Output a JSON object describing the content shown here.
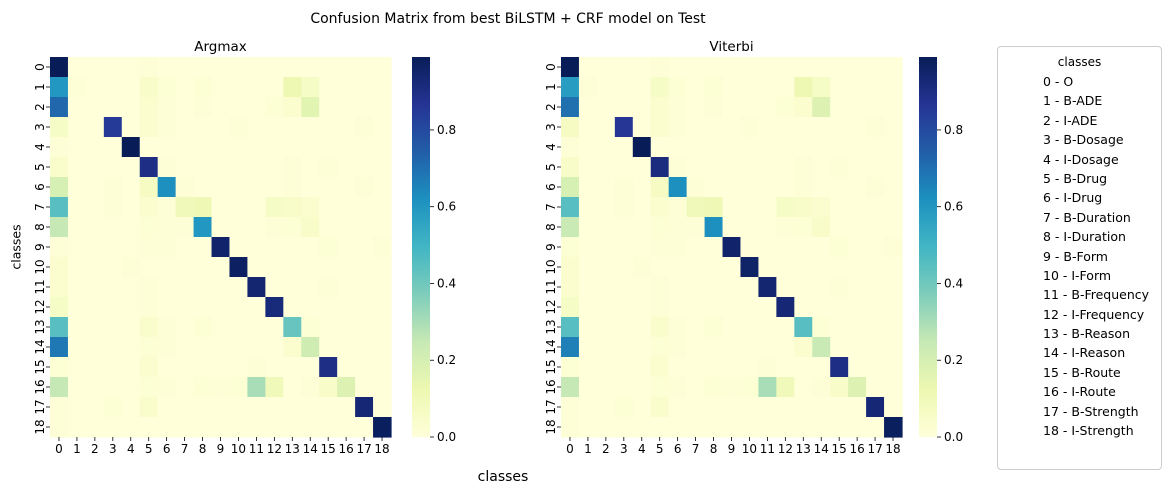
{
  "suptitle": "Confusion Matrix from best BiLSTM + CRF model on Test",
  "xlabel_shared": "classes",
  "legend": {
    "title": "classes",
    "items": [
      "0 - O",
      "1 - B-ADE",
      "2 - I-ADE",
      "3 - B-Dosage",
      "4 - I-Dosage",
      "5 - B-Drug",
      "6 - I-Drug",
      "7 - B-Duration",
      "8 - I-Duration",
      "9 - B-Form",
      "10 - I-Form",
      "11 - B-Frequency",
      "12 - I-Frequency",
      "13 - B-Reason",
      "14 - I-Reason",
      "15 - B-Route",
      "16 - I-Route",
      "17 - B-Strength",
      "18 - I-Strength"
    ]
  },
  "colors": {
    "colormap": "YlGnBu",
    "stops": [
      "#ffffd9",
      "#edf8b1",
      "#c7e9b4",
      "#7fcdbb",
      "#41b6c4",
      "#1d91c0",
      "#225ea8",
      "#253494",
      "#081d58"
    ],
    "vmin": 0,
    "vmax": 1
  },
  "chart_data": [
    {
      "type": "heatmap",
      "title": "Argmax",
      "ylabel": "classes",
      "xticks": [
        "0",
        "1",
        "2",
        "3",
        "4",
        "5",
        "6",
        "7",
        "8",
        "9",
        "10",
        "11",
        "12",
        "13",
        "14",
        "15",
        "16",
        "17",
        "18"
      ],
      "yticks": [
        "0",
        "1",
        "2",
        "3",
        "4",
        "5",
        "6",
        "7",
        "8",
        "9",
        "10",
        "11",
        "12",
        "13",
        "14",
        "15",
        "16",
        "17",
        "18"
      ],
      "colorbar_ticks": [
        "0.0",
        "0.2",
        "0.4",
        "0.6",
        "0.8"
      ],
      "colorbar_range": [
        0,
        0.99
      ],
      "matrix": [
        [
          0.99,
          0,
          0,
          0,
          0,
          0.01,
          0,
          0,
          0,
          0,
          0,
          0,
          0,
          0,
          0,
          0,
          0,
          0,
          0
        ],
        [
          0.6,
          0.01,
          0,
          0,
          0,
          0.05,
          0.02,
          0,
          0.02,
          0,
          0,
          0,
          0,
          0.12,
          0.06,
          0,
          0,
          0,
          0
        ],
        [
          0.72,
          0,
          0,
          0,
          0,
          0.03,
          0.01,
          0,
          0.01,
          0,
          0,
          0,
          0.02,
          0.03,
          0.16,
          0,
          0,
          0,
          0
        ],
        [
          0.06,
          0,
          0,
          0.85,
          0,
          0.03,
          0.01,
          0,
          0,
          0,
          0.01,
          0,
          0,
          0,
          0,
          0,
          0,
          0.01,
          0
        ],
        [
          0.01,
          0,
          0,
          0,
          0.99,
          0,
          0,
          0,
          0,
          0,
          0,
          0,
          0,
          0,
          0,
          0,
          0,
          0,
          0
        ],
        [
          0.04,
          0,
          0,
          0,
          0,
          0.9,
          0.01,
          0,
          0,
          0,
          0,
          0,
          0,
          0.01,
          0,
          0.01,
          0,
          0,
          0
        ],
        [
          0.2,
          0,
          0,
          0.01,
          0,
          0.07,
          0.62,
          0.01,
          0,
          0,
          0,
          0,
          0,
          0.01,
          0,
          0,
          0,
          0.01,
          0
        ],
        [
          0.45,
          0,
          0,
          0.01,
          0,
          0.03,
          0.01,
          0.1,
          0.11,
          0,
          0,
          0,
          0.06,
          0.05,
          0.03,
          0,
          0,
          0,
          0
        ],
        [
          0.25,
          0,
          0,
          0,
          0,
          0.02,
          0.01,
          0.01,
          0.6,
          0,
          0,
          0,
          0.01,
          0.02,
          0.05,
          0,
          0,
          0,
          0
        ],
        [
          0.01,
          0,
          0,
          0,
          0,
          0.01,
          0.01,
          0,
          0,
          0.95,
          0,
          0,
          0,
          0,
          0,
          0.02,
          0,
          0,
          0.01
        ],
        [
          0.03,
          0,
          0,
          0,
          0.01,
          0,
          0,
          0,
          0,
          0,
          0.97,
          0,
          0,
          0,
          0,
          0,
          0,
          0,
          0
        ],
        [
          0.03,
          0,
          0,
          0,
          0,
          0.01,
          0,
          0,
          0,
          0,
          0,
          0.94,
          0,
          0,
          0,
          0.01,
          0,
          0,
          0
        ],
        [
          0.06,
          0,
          0,
          0,
          0,
          0.01,
          0,
          0,
          0,
          0,
          0,
          0,
          0.92,
          0,
          0,
          0,
          0,
          0,
          0
        ],
        [
          0.45,
          0,
          0,
          0,
          0,
          0.04,
          0.01,
          0,
          0.02,
          0,
          0,
          0,
          0,
          0.42,
          0.02,
          0,
          0,
          0,
          0
        ],
        [
          0.68,
          0,
          0,
          0,
          0,
          0.02,
          0.01,
          0,
          0,
          0,
          0,
          0,
          0,
          0.03,
          0.22,
          0,
          0,
          0,
          0
        ],
        [
          0.02,
          0,
          0,
          0,
          0,
          0.03,
          0,
          0,
          0,
          0,
          0,
          0.01,
          0,
          0,
          0,
          0.9,
          0,
          0,
          0
        ],
        [
          0.25,
          0,
          0,
          0,
          0,
          0.02,
          0.01,
          0,
          0.02,
          0.01,
          0.02,
          0.3,
          0.1,
          0,
          0.01,
          0.05,
          0.18,
          0,
          0
        ],
        [
          0.01,
          0,
          0,
          0.02,
          0,
          0.04,
          0,
          0,
          0,
          0,
          0,
          0,
          0,
          0,
          0,
          0,
          0,
          0.93,
          0
        ],
        [
          0.01,
          0,
          0,
          0,
          0,
          0,
          0,
          0,
          0,
          0,
          0,
          0,
          0,
          0,
          0,
          0,
          0,
          0,
          0.98
        ]
      ]
    },
    {
      "type": "heatmap",
      "title": "Viterbi",
      "ylabel": "",
      "xticks": [
        "0",
        "1",
        "2",
        "3",
        "4",
        "5",
        "6",
        "7",
        "8",
        "9",
        "10",
        "11",
        "12",
        "13",
        "14",
        "15",
        "16",
        "17",
        "18"
      ],
      "yticks": [
        "0",
        "1",
        "2",
        "3",
        "4",
        "5",
        "6",
        "7",
        "8",
        "9",
        "10",
        "11",
        "12",
        "13",
        "14",
        "15",
        "16",
        "17",
        "18"
      ],
      "colorbar_ticks": [
        "0.0",
        "0.2",
        "0.4",
        "0.6",
        "0.8"
      ],
      "colorbar_range": [
        0,
        0.99
      ],
      "matrix": [
        [
          0.99,
          0,
          0,
          0,
          0,
          0.01,
          0,
          0,
          0,
          0,
          0,
          0,
          0,
          0,
          0,
          0,
          0,
          0,
          0
        ],
        [
          0.58,
          0.01,
          0,
          0,
          0,
          0.06,
          0.02,
          0,
          0.02,
          0,
          0,
          0,
          0,
          0.12,
          0.06,
          0,
          0,
          0,
          0
        ],
        [
          0.7,
          0,
          0,
          0,
          0,
          0.03,
          0.01,
          0,
          0.01,
          0,
          0,
          0,
          0.02,
          0.03,
          0.18,
          0,
          0,
          0,
          0
        ],
        [
          0.07,
          0,
          0,
          0.86,
          0,
          0.03,
          0.01,
          0,
          0,
          0,
          0.01,
          0,
          0,
          0,
          0,
          0,
          0,
          0.01,
          0
        ],
        [
          0.01,
          0,
          0,
          0,
          0.99,
          0,
          0,
          0,
          0,
          0,
          0,
          0,
          0,
          0,
          0,
          0,
          0,
          0,
          0
        ],
        [
          0.05,
          0,
          0,
          0,
          0,
          0.91,
          0.01,
          0,
          0,
          0,
          0,
          0,
          0,
          0.01,
          0,
          0.01,
          0,
          0,
          0
        ],
        [
          0.2,
          0,
          0,
          0.01,
          0,
          0.07,
          0.62,
          0.01,
          0,
          0,
          0,
          0,
          0,
          0.01,
          0,
          0,
          0,
          0.01,
          0
        ],
        [
          0.45,
          0,
          0,
          0.01,
          0,
          0.03,
          0.01,
          0.1,
          0.11,
          0,
          0,
          0,
          0.06,
          0.05,
          0.03,
          0,
          0,
          0,
          0
        ],
        [
          0.24,
          0,
          0,
          0,
          0,
          0.02,
          0.01,
          0.01,
          0.62,
          0,
          0,
          0,
          0.01,
          0.02,
          0.05,
          0,
          0,
          0,
          0
        ],
        [
          0.02,
          0,
          0,
          0,
          0,
          0.01,
          0.01,
          0,
          0,
          0.95,
          0,
          0,
          0,
          0,
          0,
          0.02,
          0,
          0,
          0.01
        ],
        [
          0.03,
          0,
          0,
          0,
          0.01,
          0,
          0,
          0,
          0,
          0,
          0.96,
          0,
          0,
          0,
          0,
          0,
          0,
          0,
          0
        ],
        [
          0.03,
          0,
          0,
          0,
          0,
          0.01,
          0,
          0,
          0,
          0,
          0,
          0.94,
          0,
          0,
          0,
          0.01,
          0,
          0,
          0
        ],
        [
          0.06,
          0,
          0,
          0,
          0,
          0.01,
          0,
          0,
          0,
          0,
          0,
          0,
          0.93,
          0,
          0,
          0,
          0,
          0,
          0
        ],
        [
          0.45,
          0,
          0,
          0,
          0,
          0.04,
          0.01,
          0,
          0.02,
          0,
          0,
          0,
          0,
          0.45,
          0.02,
          0,
          0,
          0,
          0
        ],
        [
          0.66,
          0,
          0,
          0,
          0,
          0.02,
          0.01,
          0,
          0,
          0,
          0,
          0,
          0,
          0.03,
          0.24,
          0,
          0,
          0,
          0
        ],
        [
          0.02,
          0,
          0,
          0,
          0,
          0.03,
          0,
          0,
          0,
          0,
          0,
          0.01,
          0,
          0,
          0,
          0.9,
          0,
          0,
          0
        ],
        [
          0.25,
          0,
          0,
          0,
          0,
          0.02,
          0.01,
          0,
          0.02,
          0.01,
          0.02,
          0.3,
          0.1,
          0,
          0.01,
          0.05,
          0.18,
          0,
          0
        ],
        [
          0.01,
          0,
          0,
          0.02,
          0,
          0.04,
          0,
          0,
          0,
          0,
          0,
          0,
          0,
          0,
          0,
          0,
          0,
          0.93,
          0
        ],
        [
          0.01,
          0,
          0,
          0,
          0,
          0,
          0,
          0,
          0,
          0,
          0,
          0,
          0,
          0,
          0,
          0,
          0,
          0,
          0.98
        ]
      ]
    }
  ]
}
